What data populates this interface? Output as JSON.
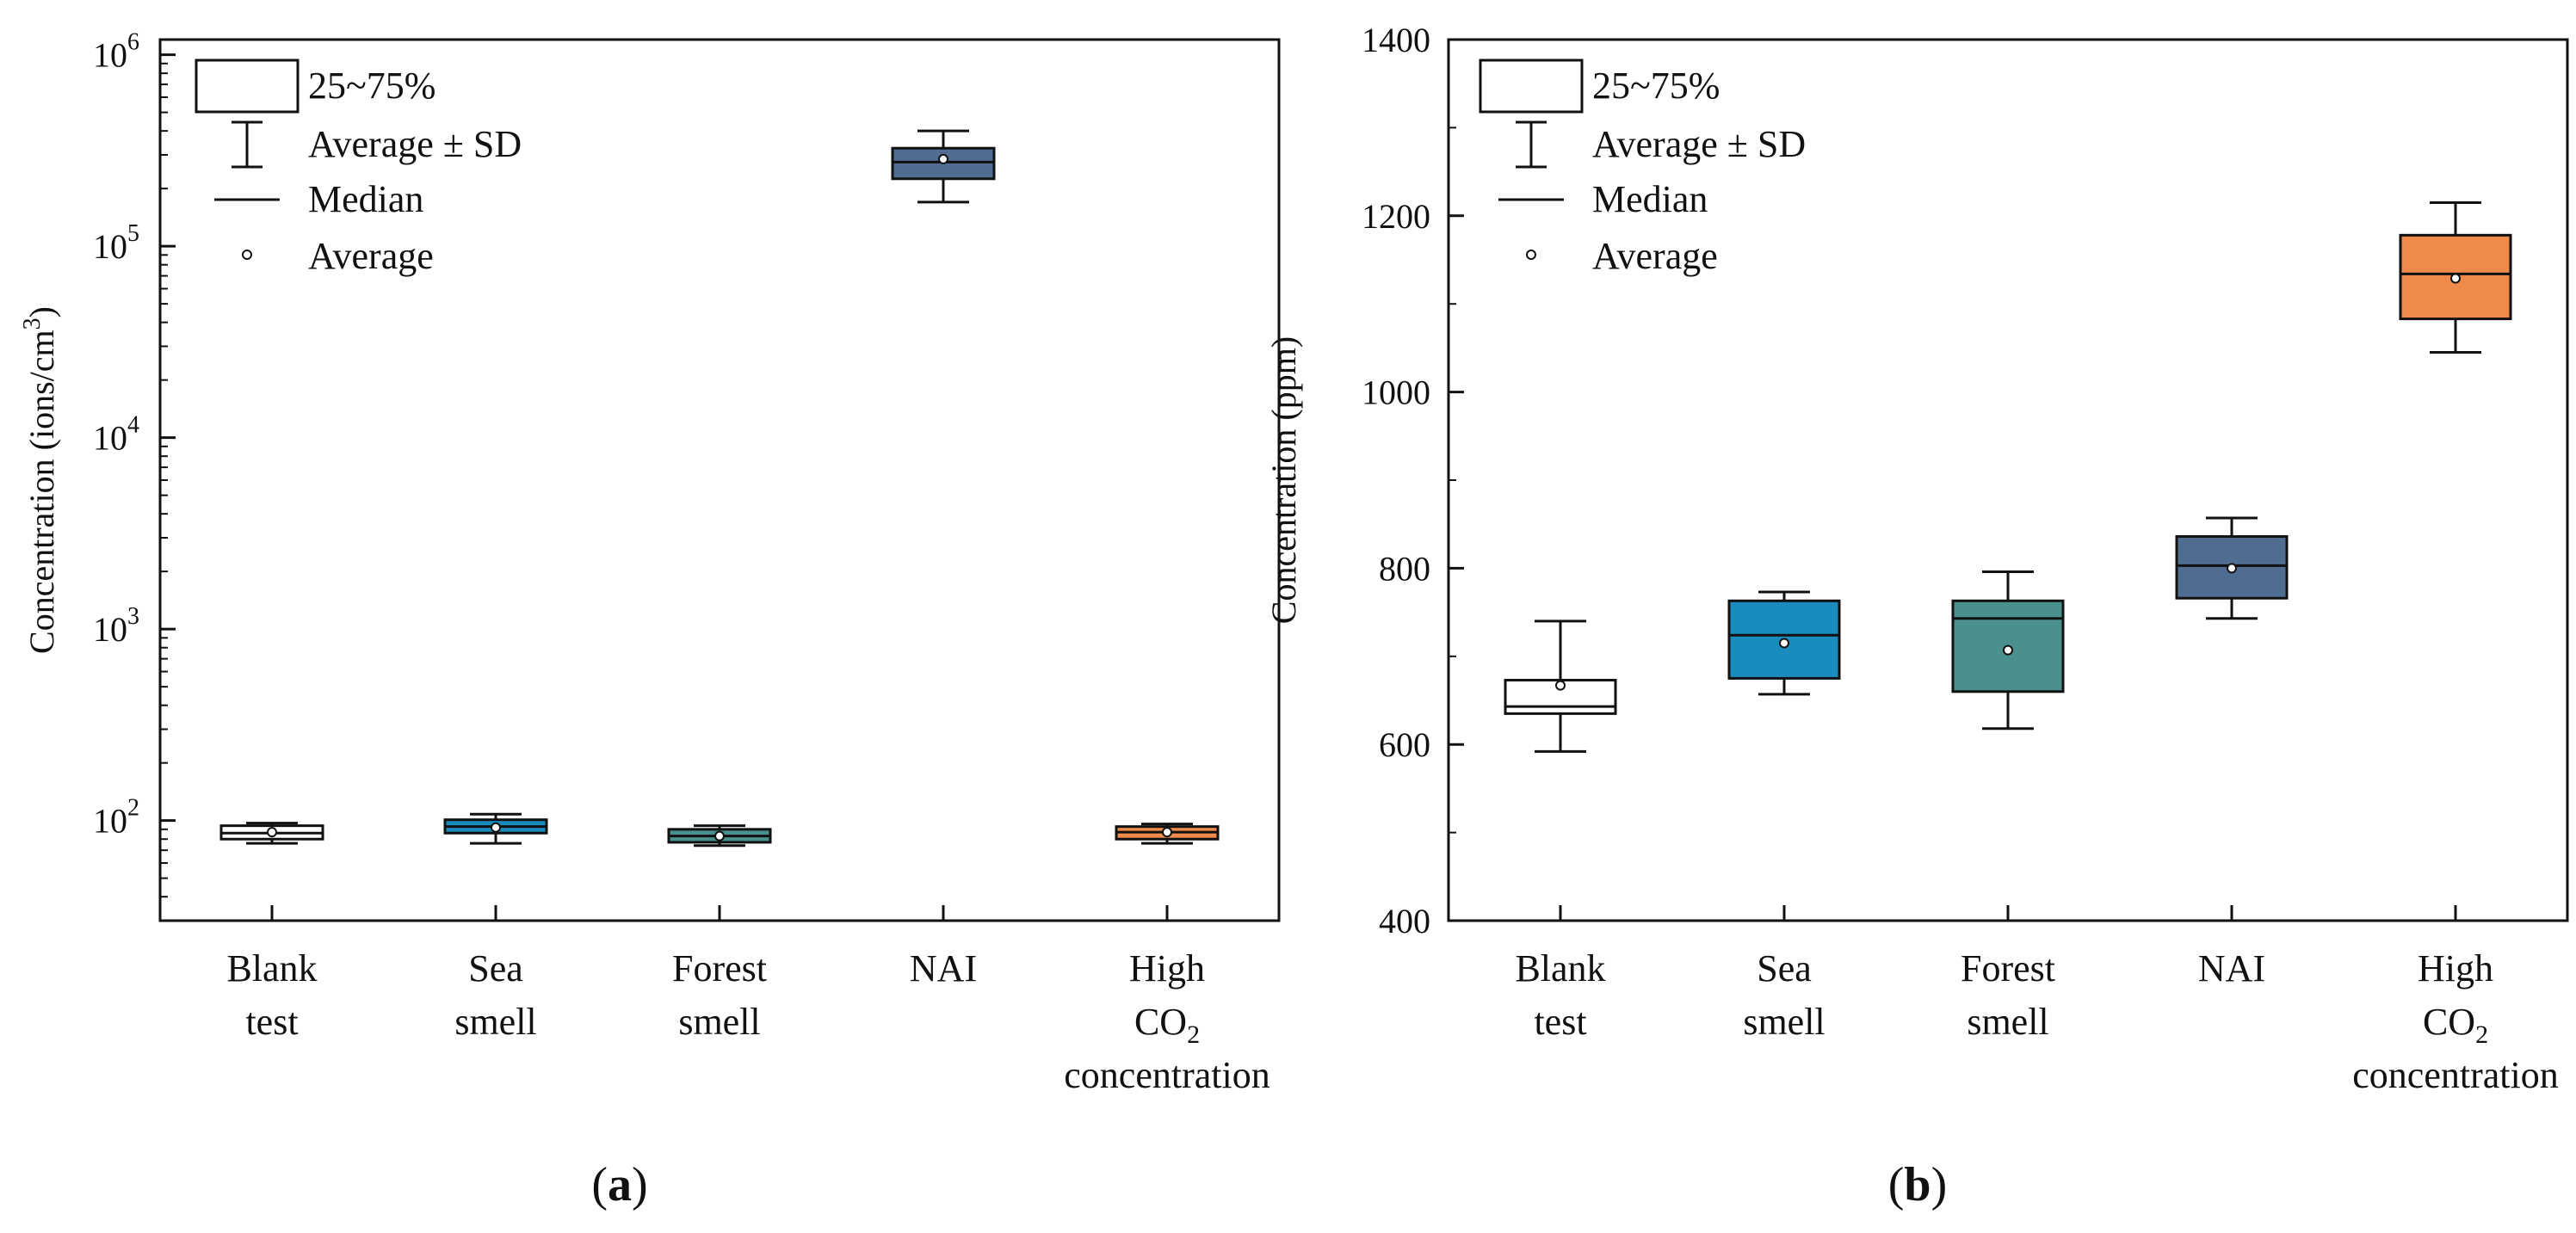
{
  "chart_data": [
    {
      "type": "box",
      "panel_label": "(a)",
      "ylabel": "Concentration (ions/cm³)",
      "yscale": "log",
      "ylim": [
        30,
        1200000
      ],
      "y_ticks": [
        100,
        1000,
        10000,
        100000,
        1000000
      ],
      "y_tick_labels": [
        {
          "base": "10",
          "exp": "2"
        },
        {
          "base": "10",
          "exp": "3"
        },
        {
          "base": "10",
          "exp": "4"
        },
        {
          "base": "10",
          "exp": "5"
        },
        {
          "base": "10",
          "exp": "6"
        }
      ],
      "categories": [
        {
          "lines": [
            "Blank",
            "test"
          ]
        },
        {
          "lines": [
            "Sea",
            "smell"
          ]
        },
        {
          "lines": [
            "Forest",
            "smell"
          ]
        },
        {
          "lines": [
            "NAI"
          ]
        },
        {
          "lines": [
            "High",
            "CO2",
            "concentration"
          ]
        }
      ],
      "boxes": [
        {
          "q1": 80,
          "q3": 94,
          "median": 86,
          "mean": 87,
          "sd_low": 76,
          "sd_high": 97,
          "color": "#ffffff"
        },
        {
          "q1": 86,
          "q3": 101,
          "median": 93,
          "mean": 92,
          "sd_low": 76,
          "sd_high": 108,
          "color": "#1a8bbd"
        },
        {
          "q1": 77,
          "q3": 90,
          "median": 83,
          "mean": 83,
          "sd_low": 74,
          "sd_high": 94,
          "color": "#4a918d"
        },
        {
          "q1": 225000,
          "q3": 325000,
          "median": 275000,
          "mean": 285000,
          "sd_low": 170000,
          "sd_high": 400000,
          "color": "#4f6d91"
        },
        {
          "q1": 80,
          "q3": 93,
          "median": 87,
          "mean": 87,
          "sd_low": 76,
          "sd_high": 96,
          "color": "#f08a4b"
        }
      ],
      "legend": {
        "position": "top-left",
        "items": [
          "25~75%",
          "Average ± SD",
          "Median",
          "Average"
        ]
      }
    },
    {
      "type": "box",
      "panel_label": "(b)",
      "ylabel": "Concentration (ppm)",
      "yscale": "linear",
      "ylim": [
        400,
        1400
      ],
      "y_ticks": [
        400,
        600,
        800,
        1000,
        1200,
        1400
      ],
      "y_minor_step": 100,
      "categories": [
        {
          "lines": [
            "Blank",
            "test"
          ]
        },
        {
          "lines": [
            "Sea",
            "smell"
          ]
        },
        {
          "lines": [
            "Forest",
            "smell"
          ]
        },
        {
          "lines": [
            "NAI"
          ]
        },
        {
          "lines": [
            "High",
            "CO2",
            "concentration"
          ]
        }
      ],
      "boxes": [
        {
          "q1": 635,
          "q3": 673,
          "median": 643,
          "mean": 667,
          "sd_low": 592,
          "sd_high": 740,
          "color": "#ffffff"
        },
        {
          "q1": 675,
          "q3": 763,
          "median": 724,
          "mean": 715,
          "sd_low": 657,
          "sd_high": 773,
          "color": "#1a8bbd"
        },
        {
          "q1": 660,
          "q3": 763,
          "median": 743,
          "mean": 707,
          "sd_low": 618,
          "sd_high": 796,
          "color": "#4a918d"
        },
        {
          "q1": 766,
          "q3": 836,
          "median": 803,
          "mean": 800,
          "sd_low": 743,
          "sd_high": 857,
          "color": "#4f6d91"
        },
        {
          "q1": 1083,
          "q3": 1178,
          "median": 1134,
          "mean": 1129,
          "sd_low": 1045,
          "sd_high": 1215,
          "color": "#f08a4b"
        }
      ],
      "legend": {
        "position": "top-left",
        "items": [
          "25~75%",
          "Average ± SD",
          "Median",
          "Average"
        ]
      }
    }
  ]
}
